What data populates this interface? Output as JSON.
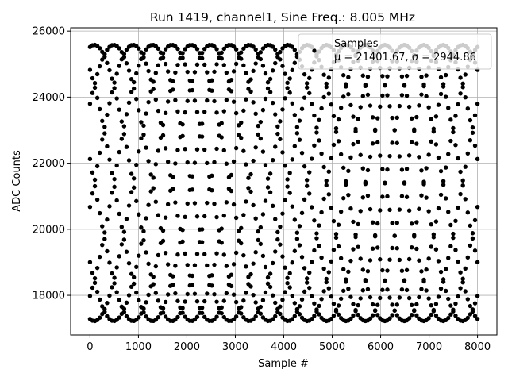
{
  "chart_data": {
    "type": "scatter",
    "title": "Run 1419, channel1, Sine Freq.: 8.005 MHz",
    "xlabel": "Sample #",
    "ylabel": "ADC Counts",
    "xlim": [
      -400,
      8400
    ],
    "ylim": [
      16800,
      26100
    ],
    "xticks": [
      0,
      1000,
      2000,
      3000,
      4000,
      5000,
      6000,
      7000,
      8000
    ],
    "xtick_labels": [
      "0",
      "1000",
      "2000",
      "3000",
      "4000",
      "5000",
      "6000",
      "7000",
      "8000"
    ],
    "yticks": [
      18000,
      20000,
      22000,
      24000,
      26000
    ],
    "ytick_labels": [
      "18000",
      "20000",
      "22000",
      "24000",
      "26000"
    ],
    "grid": true,
    "legend": {
      "placement": "top-right",
      "title": "Samples",
      "entry": "μ = 21401.67, σ = 2944.86"
    },
    "series": [
      {
        "name": "Samples",
        "color": "#000000",
        "x_start": 0,
        "x_end": 8000,
        "points_per_trace": 160,
        "mean": 21401.67,
        "amplitude": 4180,
        "period_samples": 3200,
        "trace_phase_offsets_deg": [
          80,
          125,
          170,
          215,
          260,
          305,
          350,
          35
        ]
      }
    ]
  }
}
